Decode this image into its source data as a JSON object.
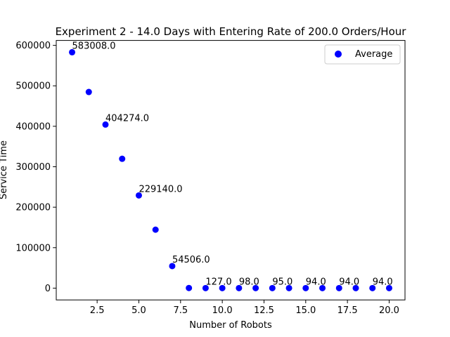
{
  "chart_data": {
    "type": "scatter",
    "title": "Experiment 2 - 14.0 Days with Entering Rate of 200.0 Orders/Hour",
    "xlabel": "Number of Robots",
    "ylabel": "Service Time",
    "xlim": [
      0.05,
      20.95
    ],
    "ylim": [
      -29150,
      612158
    ],
    "x_ticks": [
      2.5,
      5.0,
      7.5,
      10.0,
      12.5,
      15.0,
      17.5,
      20.0
    ],
    "x_tick_labels": [
      "2.5",
      "5.0",
      "7.5",
      "10.0",
      "12.5",
      "15.0",
      "17.5",
      "20.0"
    ],
    "y_ticks": [
      0,
      100000,
      200000,
      300000,
      400000,
      500000,
      600000
    ],
    "y_tick_labels": [
      "0",
      "100000",
      "200000",
      "300000",
      "400000",
      "500000",
      "600000"
    ],
    "grid": false,
    "legend_position": "top-right",
    "series": [
      {
        "name": "Average",
        "color": "#0000ff",
        "x": [
          1,
          2,
          3,
          4,
          5,
          6,
          7,
          8,
          9,
          10,
          11,
          12,
          13,
          14,
          15,
          16,
          17,
          18,
          19,
          20
        ],
        "y": [
          583008.0,
          484700,
          404274.0,
          319700,
          229140.0,
          144500,
          54506.0,
          300,
          127.0,
          110,
          98.0,
          96,
          95.0,
          94.5,
          94.0,
          94,
          94.0,
          94,
          94.0,
          94
        ]
      }
    ],
    "annotations": [
      {
        "x": 1,
        "y": 583008.0,
        "text": "583008.0"
      },
      {
        "x": 3,
        "y": 404274.0,
        "text": "404274.0"
      },
      {
        "x": 5,
        "y": 229140.0,
        "text": "229140.0"
      },
      {
        "x": 7,
        "y": 54506.0,
        "text": "54506.0"
      },
      {
        "x": 9,
        "y": 127.0,
        "text": "127.0"
      },
      {
        "x": 11,
        "y": 98.0,
        "text": "98.0"
      },
      {
        "x": 13,
        "y": 95.0,
        "text": "95.0"
      },
      {
        "x": 15,
        "y": 94.0,
        "text": "94.0"
      },
      {
        "x": 17,
        "y": 94.0,
        "text": "94.0"
      },
      {
        "x": 19,
        "y": 94.0,
        "text": "94.0"
      }
    ]
  }
}
